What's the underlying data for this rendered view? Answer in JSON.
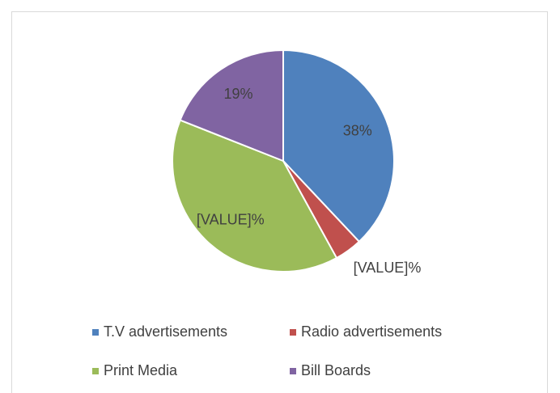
{
  "chart_data": {
    "type": "pie",
    "categories": [
      "T.V advertisements",
      "Radio advertisements",
      "Print Media",
      "Bill Boards"
    ],
    "values": [
      38,
      4,
      39,
      19
    ],
    "value_labels": [
      "38%",
      "[VALUE]%",
      "[VALUE]%",
      "19%"
    ],
    "colors": [
      "#4f81bd",
      "#c0504d",
      "#9bbb59",
      "#8064a2"
    ],
    "legend": "bottom"
  }
}
